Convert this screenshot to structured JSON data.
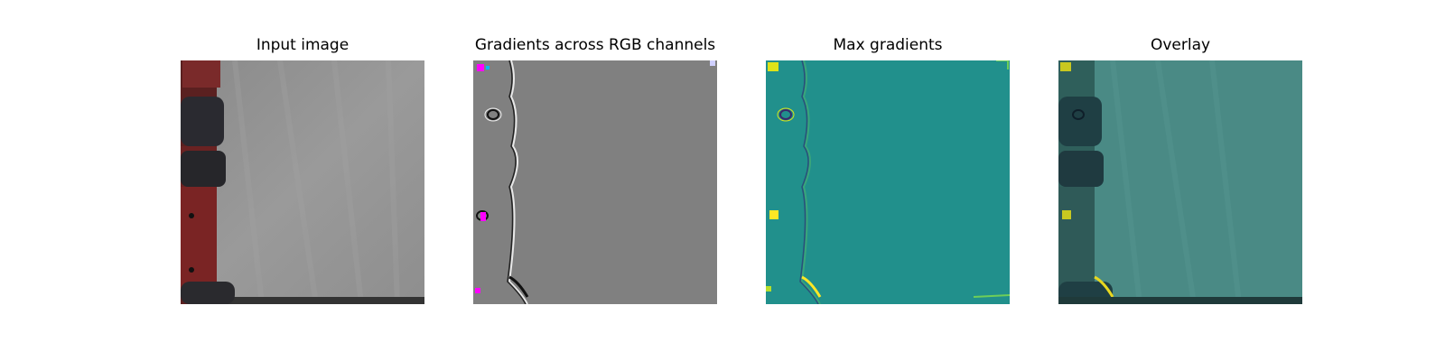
{
  "panels": [
    {
      "title": "Input image"
    },
    {
      "title": "Gradients across RGB channels"
    },
    {
      "title": "Max gradients"
    },
    {
      "title": "Overlay"
    }
  ]
}
